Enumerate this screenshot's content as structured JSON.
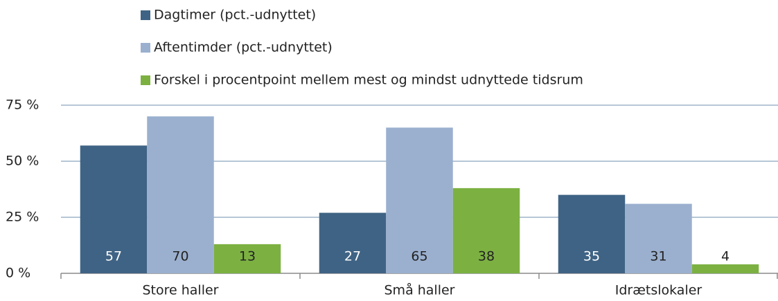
{
  "chart_data": {
    "type": "bar",
    "categories": [
      "Store haller",
      "Små haller",
      "Idrætslokaler"
    ],
    "series": [
      {
        "name": "Dagtimer (pct.-udnyttet)",
        "color": "#3f6384",
        "values": [
          57,
          27,
          35
        ]
      },
      {
        "name": "Aftentimder (pct.-udnyttet)",
        "color": "#9bb0cf",
        "values": [
          70,
          65,
          31
        ]
      },
      {
        "name": "Forskel i procentpoint mellem mest og mindst udnyttede tidsrum",
        "color": "#7cb142",
        "values": [
          13,
          38,
          4
        ]
      }
    ],
    "ylim": [
      0,
      75
    ],
    "yticks": [
      {
        "value": 0,
        "label": "0 %"
      },
      {
        "value": 25,
        "label": "25 %"
      },
      {
        "value": 50,
        "label": "50 %"
      },
      {
        "value": 75,
        "label": "75 %"
      }
    ],
    "grid": true,
    "legend": "top"
  }
}
